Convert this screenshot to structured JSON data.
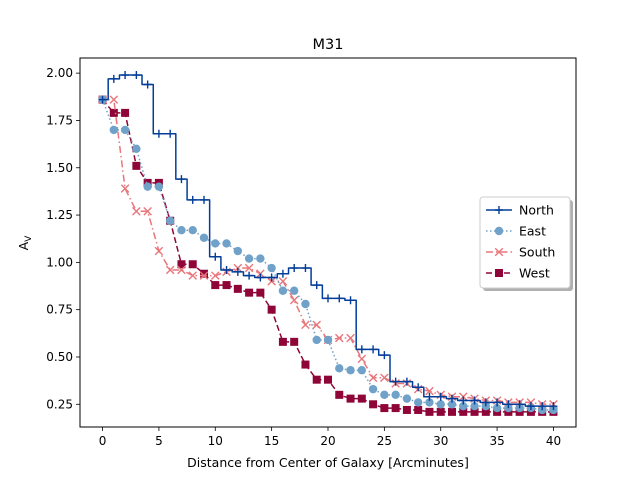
{
  "chart_data": {
    "type": "line",
    "title": "M31",
    "xlabel": "Distance from Center of Galaxy [Arcminutes]",
    "ylabel": "A",
    "ylabel_sub": "V",
    "xlim": [
      -2,
      42
    ],
    "ylim": [
      0.13,
      2.08
    ],
    "x_ticks": [
      0,
      5,
      10,
      15,
      20,
      25,
      30,
      35,
      40
    ],
    "y_ticks": [
      0.25,
      0.5,
      0.75,
      1.0,
      1.25,
      1.5,
      1.75,
      2.0
    ],
    "y_tick_labels": [
      "0.25",
      "0.50",
      "0.75",
      "1.00",
      "1.25",
      "1.50",
      "1.75",
      "2.00"
    ],
    "x": [
      0,
      1,
      2,
      3,
      4,
      5,
      6,
      7,
      8,
      9,
      10,
      11,
      12,
      13,
      14,
      15,
      16,
      17,
      18,
      19,
      20,
      21,
      22,
      23,
      24,
      25,
      26,
      27,
      28,
      29,
      30,
      31,
      32,
      33,
      34,
      35,
      36,
      37,
      38,
      39,
      40
    ],
    "grid": false,
    "legend_position": "center-right",
    "series": [
      {
        "name": "North",
        "color": "#023e99",
        "marker": "plus",
        "linestyle": "solid",
        "drawstyle": "steps-mid",
        "values": [
          1.86,
          1.97,
          1.99,
          1.99,
          1.94,
          1.68,
          1.68,
          1.44,
          1.33,
          1.33,
          1.03,
          0.96,
          0.95,
          0.93,
          0.92,
          0.92,
          0.94,
          0.97,
          0.97,
          0.88,
          0.81,
          0.81,
          0.8,
          0.54,
          0.54,
          0.51,
          0.37,
          0.37,
          0.34,
          0.29,
          0.29,
          0.28,
          0.27,
          0.27,
          0.26,
          0.26,
          0.25,
          0.25,
          0.24,
          0.24,
          0.24
        ]
      },
      {
        "name": "East",
        "color": "#6fa1c9",
        "marker": "circle",
        "linestyle": "dotted",
        "drawstyle": "default",
        "values": [
          1.86,
          1.7,
          1.7,
          1.6,
          1.4,
          1.4,
          1.22,
          1.17,
          1.17,
          1.13,
          1.1,
          1.1,
          1.06,
          1.02,
          1.02,
          0.97,
          0.85,
          0.85,
          0.78,
          0.59,
          0.59,
          0.44,
          0.43,
          0.43,
          0.33,
          0.3,
          0.3,
          0.28,
          0.26,
          0.26,
          0.25,
          0.25,
          0.24,
          0.24,
          0.24,
          0.23,
          0.23,
          0.23,
          0.23,
          0.22,
          0.22
        ]
      },
      {
        "name": "South",
        "color": "#e8767b",
        "marker": "x",
        "linestyle": "dashdot",
        "drawstyle": "default",
        "values": [
          1.86,
          1.86,
          1.39,
          1.27,
          1.27,
          1.06,
          0.96,
          0.96,
          0.93,
          0.93,
          0.93,
          0.95,
          0.97,
          0.97,
          0.94,
          0.9,
          0.9,
          0.8,
          0.67,
          0.67,
          0.59,
          0.6,
          0.6,
          0.49,
          0.39,
          0.39,
          0.36,
          0.36,
          0.33,
          0.32,
          0.3,
          0.29,
          0.29,
          0.28,
          0.27,
          0.27,
          0.26,
          0.26,
          0.26,
          0.25,
          0.25
        ]
      },
      {
        "name": "West",
        "color": "#8f0538",
        "marker": "square",
        "linestyle": "dashed",
        "drawstyle": "default",
        "values": [
          1.86,
          1.79,
          1.79,
          1.51,
          1.42,
          1.42,
          1.22,
          0.99,
          0.99,
          0.94,
          0.88,
          0.88,
          0.86,
          0.84,
          0.84,
          0.75,
          0.58,
          0.58,
          0.46,
          0.38,
          0.38,
          0.3,
          0.28,
          0.28,
          0.25,
          0.23,
          0.23,
          0.22,
          0.22,
          0.21,
          0.21,
          0.21,
          0.21,
          0.21,
          0.21,
          0.21,
          0.21,
          0.21,
          0.21,
          0.21,
          0.21
        ]
      }
    ]
  }
}
